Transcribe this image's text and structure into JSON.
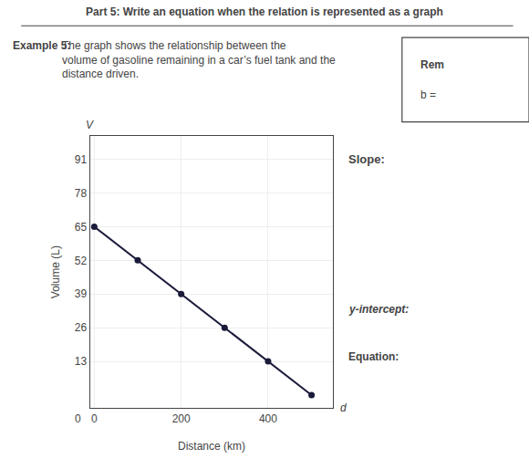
{
  "chart_data": {
    "type": "line",
    "title": "Part 5: Write an equation when the relation is represented as a graph",
    "xlabel": "Distance (km)",
    "ylabel": "Volume (L)",
    "xlim": [
      -10,
      550
    ],
    "ylim": [
      -5,
      100
    ],
    "xticks": [
      0,
      200,
      400
    ],
    "yticks": [
      13,
      26,
      39,
      52,
      65,
      78,
      91
    ],
    "grid": true,
    "series": [
      {
        "type": "line",
        "x": [
          0,
          500
        ],
        "values": [
          65,
          0
        ],
        "color": "#1a1a3a"
      },
      {
        "type": "scatter",
        "x": [
          0,
          100,
          200,
          300,
          400,
          500
        ],
        "values": [
          65,
          52,
          39,
          26,
          13,
          0
        ],
        "color": "#1a1a3a"
      }
    ],
    "annotations": [
      "Example 5:",
      "The graph shows the relationship between the\nvolume of gasoline remaining in a car’s fuel tank and the\ndistance driven.",
      "Rem",
      "b =",
      "Slope:",
      "y-intercept:",
      "Equation:",
      "d",
      "V",
      "0"
    ]
  }
}
